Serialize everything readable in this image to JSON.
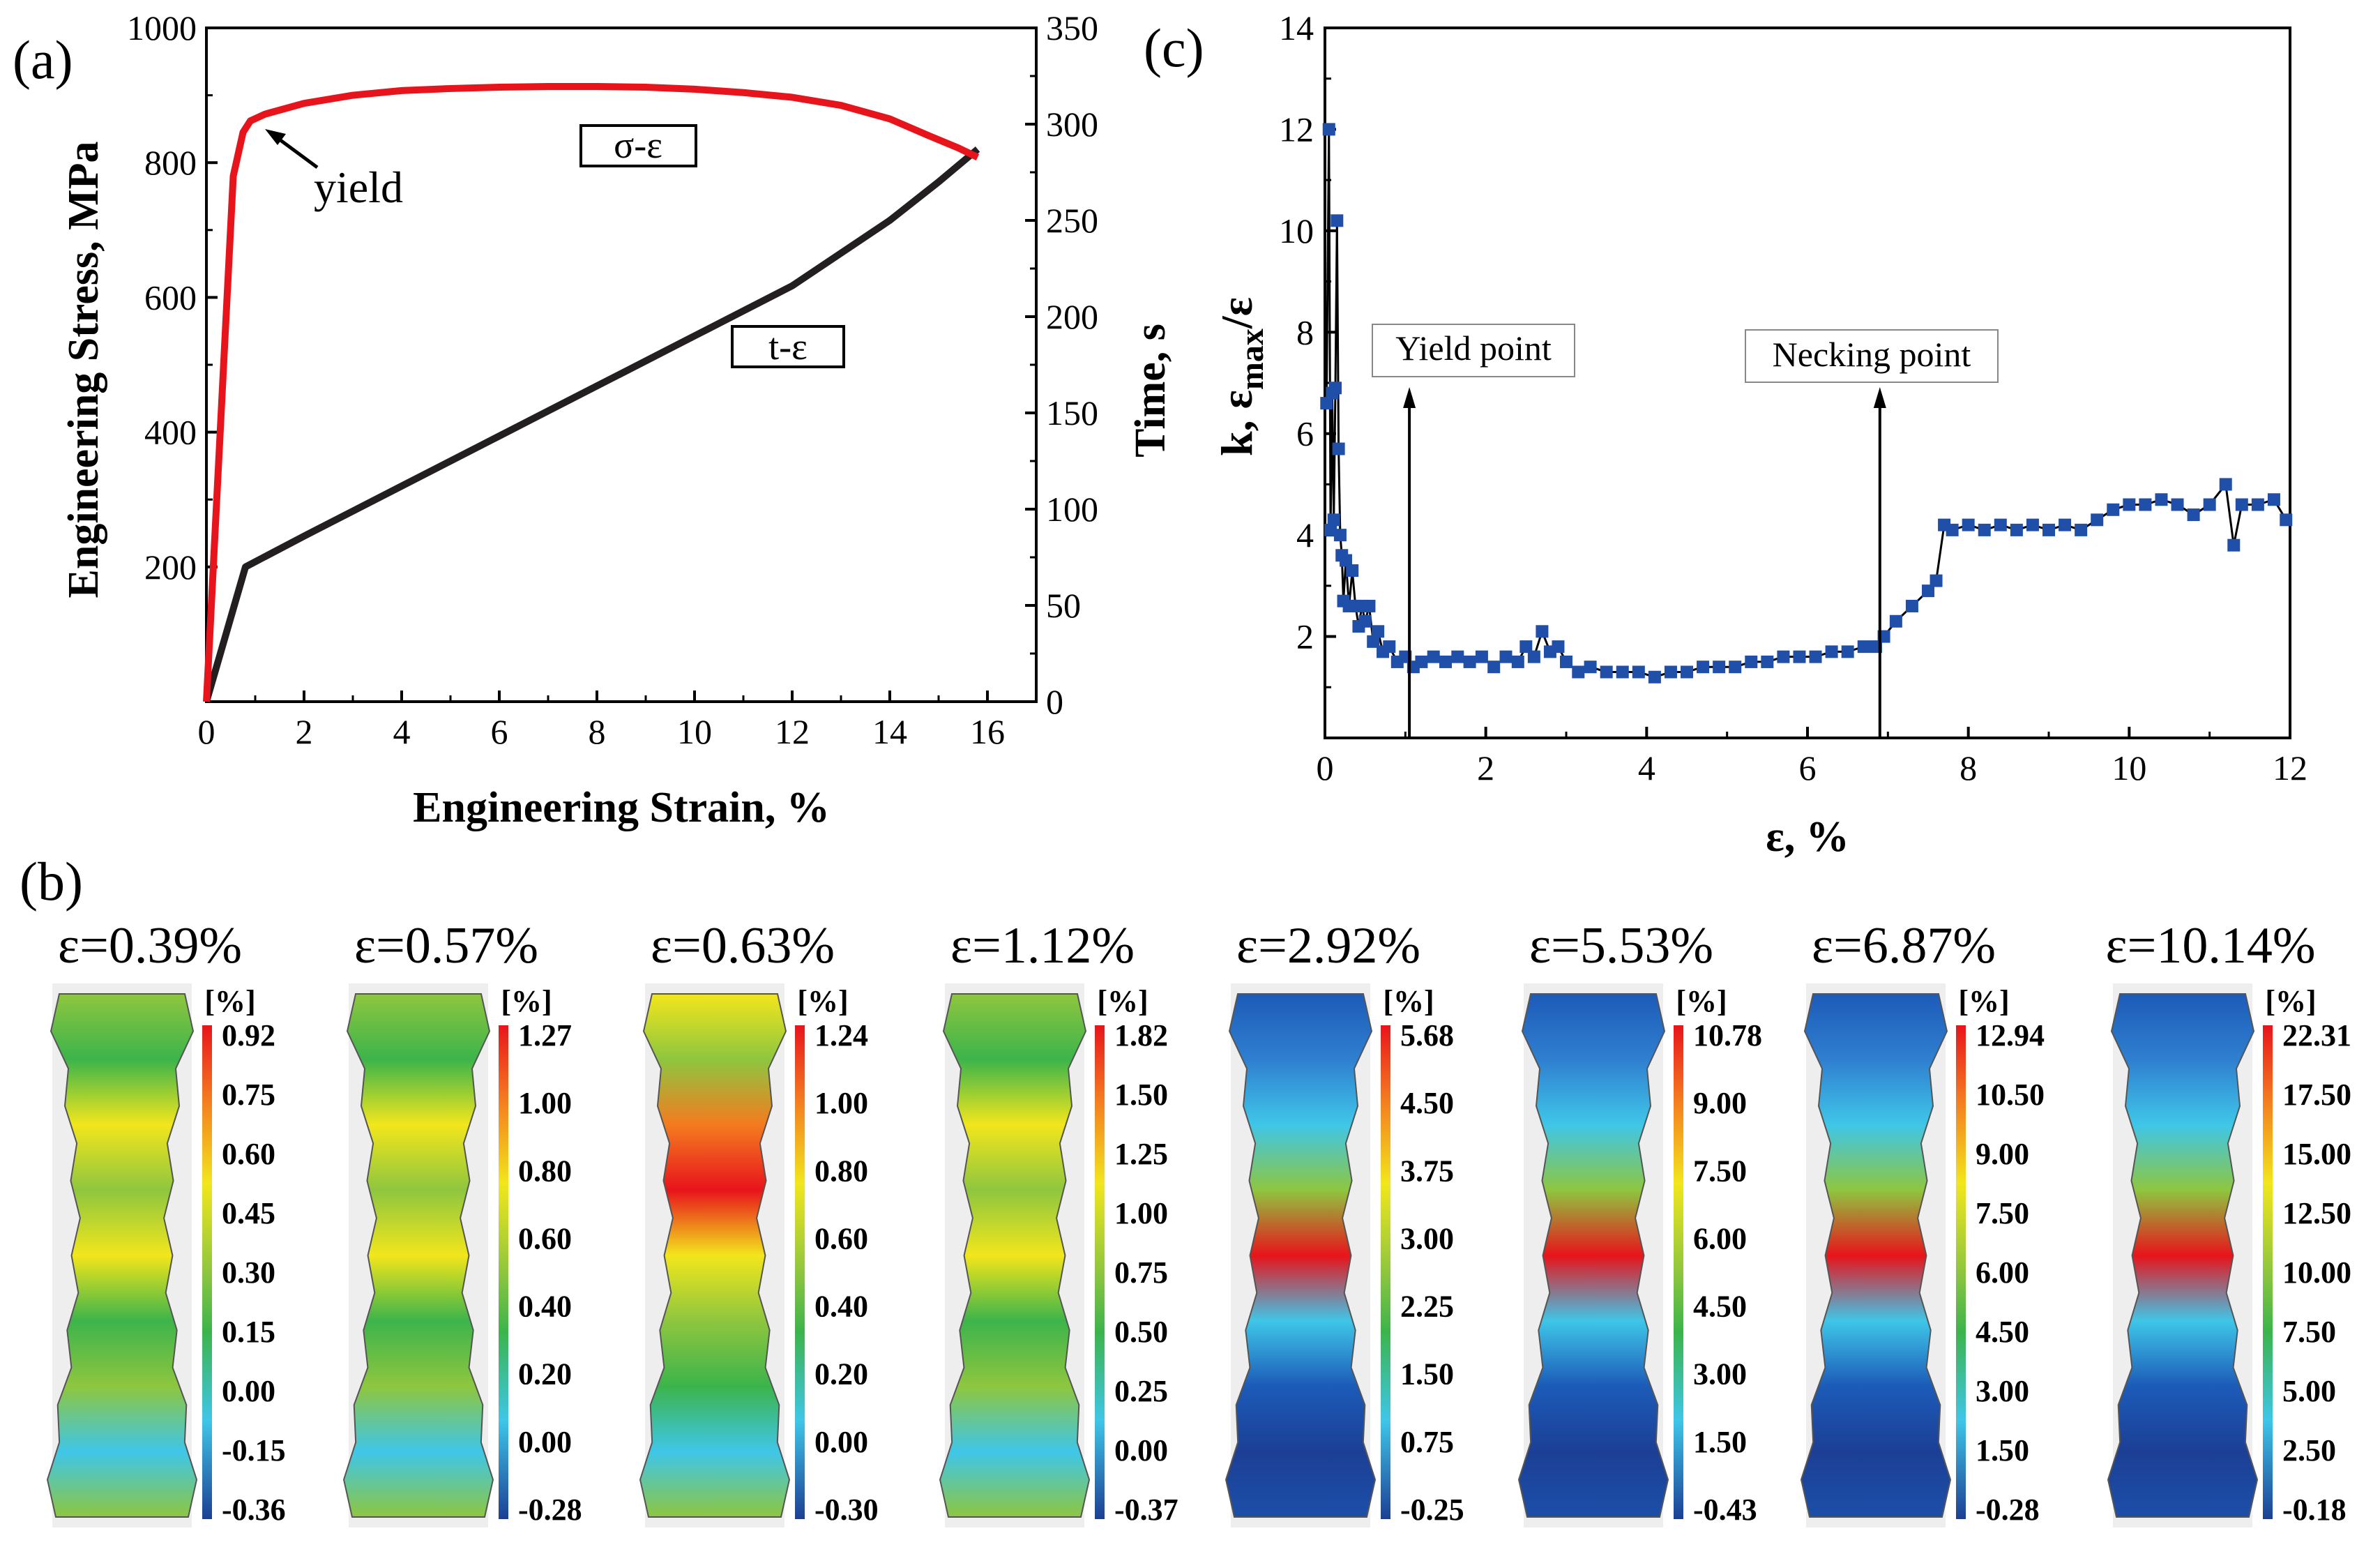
{
  "panel_labels": {
    "a": "(a)",
    "b": "(b)",
    "c": "(c)"
  },
  "colors": {
    "stress_curve": "#e8141b",
    "time_curve": "#231f20",
    "k_series": "#1f4fa8",
    "axis": "#000000"
  },
  "chart_data": [
    {
      "id": "a",
      "type": "line",
      "xlabel": "Engineering Strain, %",
      "ylabel": "Engineering Stress, MPa",
      "ylabel_right": "Time, s",
      "xlim": [
        0,
        17
      ],
      "ylim": [
        0,
        1000
      ],
      "ylim_right": [
        0,
        350
      ],
      "xticks": [
        0,
        2,
        4,
        6,
        8,
        10,
        12,
        14,
        16
      ],
      "yticks": [
        200,
        400,
        600,
        800,
        1000
      ],
      "yticks_right": [
        0,
        50,
        100,
        150,
        200,
        250,
        300,
        350
      ],
      "series": [
        {
          "name": "σ-ε",
          "axis": "left",
          "x": [
            0,
            0.55,
            0.75,
            0.9,
            1.2,
            2,
            3,
            4,
            5,
            6,
            7,
            8,
            9,
            10,
            11,
            12,
            13,
            14,
            14.8,
            15.4,
            15.8
          ],
          "y": [
            0,
            780,
            845,
            862,
            872,
            888,
            900,
            907,
            910,
            912,
            913,
            913,
            912,
            909,
            904,
            897,
            885,
            865,
            840,
            822,
            808
          ]
        },
        {
          "name": "t-ε",
          "axis": "right",
          "x": [
            0,
            0.8,
            2,
            4,
            6,
            8,
            10,
            12,
            14,
            15,
            15.8
          ],
          "y": [
            0,
            70,
            86,
            112,
            138,
            164,
            190,
            216,
            250,
            270,
            287
          ]
        }
      ],
      "annotations": [
        {
          "text": "yield",
          "x": 0.9,
          "y": 860
        },
        {
          "text": "σ-ε",
          "x": 8,
          "y": 815
        },
        {
          "text": "t-ε",
          "x": 11.7,
          "y": 530
        }
      ]
    },
    {
      "id": "c",
      "type": "scatter",
      "xlabel": "ε, %",
      "ylabel_parts": {
        "main": "k,  ε",
        "sub": "max",
        "tail": "/ε"
      },
      "xlim": [
        0,
        12
      ],
      "ylim": [
        0,
        14
      ],
      "xticks": [
        0,
        2,
        4,
        6,
        8,
        10,
        12
      ],
      "yticks": [
        2,
        4,
        6,
        8,
        10,
        12,
        14
      ],
      "series": [
        {
          "name": "k",
          "x": [
            0.02,
            0.05,
            0.07,
            0.09,
            0.11,
            0.13,
            0.15,
            0.17,
            0.19,
            0.21,
            0.23,
            0.26,
            0.3,
            0.34,
            0.38,
            0.42,
            0.46,
            0.5,
            0.55,
            0.6,
            0.66,
            0.72,
            0.8,
            0.9,
            1.0,
            1.1,
            1.2,
            1.35,
            1.5,
            1.65,
            1.8,
            1.95,
            2.1,
            2.25,
            2.4,
            2.5,
            2.6,
            2.7,
            2.8,
            2.9,
            3.0,
            3.15,
            3.3,
            3.5,
            3.7,
            3.9,
            4.1,
            4.3,
            4.5,
            4.7,
            4.9,
            5.1,
            5.3,
            5.5,
            5.7,
            5.9,
            6.1,
            6.3,
            6.5,
            6.7,
            6.85,
            6.95,
            7.1,
            7.3,
            7.5,
            7.6,
            7.7,
            7.8,
            8.0,
            8.2,
            8.4,
            8.6,
            8.8,
            9.0,
            9.2,
            9.4,
            9.6,
            9.8,
            10.0,
            10.2,
            10.4,
            10.6,
            10.8,
            11.0,
            11.2,
            11.3,
            11.4,
            11.6,
            11.8,
            11.95
          ],
          "y": [
            6.6,
            12.0,
            4.1,
            6.8,
            4.3,
            6.9,
            10.2,
            5.7,
            4.0,
            3.6,
            2.7,
            3.5,
            2.6,
            3.3,
            2.6,
            2.2,
            2.6,
            2.3,
            2.6,
            1.9,
            2.1,
            1.7,
            1.8,
            1.5,
            1.6,
            1.4,
            1.5,
            1.6,
            1.5,
            1.6,
            1.5,
            1.6,
            1.4,
            1.6,
            1.5,
            1.8,
            1.6,
            2.1,
            1.7,
            1.8,
            1.5,
            1.3,
            1.4,
            1.3,
            1.3,
            1.3,
            1.2,
            1.3,
            1.3,
            1.4,
            1.4,
            1.4,
            1.5,
            1.5,
            1.6,
            1.6,
            1.6,
            1.7,
            1.7,
            1.8,
            1.8,
            2.0,
            2.3,
            2.6,
            2.9,
            3.1,
            4.2,
            4.1,
            4.2,
            4.1,
            4.2,
            4.1,
            4.2,
            4.1,
            4.2,
            4.1,
            4.3,
            4.5,
            4.6,
            4.6,
            4.7,
            4.6,
            4.4,
            4.6,
            5.0,
            3.8,
            4.6,
            4.6,
            4.7,
            4.3
          ]
        }
      ],
      "annotations": [
        {
          "text": "Yield point",
          "x": 1.05
        },
        {
          "text": "Necking point",
          "x": 6.9
        }
      ]
    }
  ],
  "dic_maps": [
    {
      "label": "ε=0.39%",
      "unit": "[%]",
      "ticks": [
        "0.92",
        "0.75",
        "0.60",
        "0.45",
        "0.30",
        "0.15",
        "0.00",
        "-0.15",
        "-0.36"
      ],
      "scheme": "mid"
    },
    {
      "label": "ε=0.57%",
      "unit": "[%]",
      "ticks": [
        "1.27",
        "1.00",
        "0.80",
        "0.60",
        "0.40",
        "0.20",
        "0.00",
        "-0.28"
      ],
      "scheme": "mid"
    },
    {
      "label": "ε=0.63%",
      "unit": "[%]",
      "ticks": [
        "1.24",
        "1.00",
        "0.80",
        "0.60",
        "0.40",
        "0.20",
        "0.00",
        "-0.30"
      ],
      "scheme": "hot"
    },
    {
      "label": "ε=1.12%",
      "unit": "[%]",
      "ticks": [
        "1.82",
        "1.50",
        "1.25",
        "1.00",
        "0.75",
        "0.50",
        "0.25",
        "0.00",
        "-0.37"
      ],
      "scheme": "mid"
    },
    {
      "label": "ε=2.92%",
      "unit": "[%]",
      "ticks": [
        "5.68",
        "4.50",
        "3.75",
        "3.00",
        "2.25",
        "1.50",
        "0.75",
        "-0.25"
      ],
      "scheme": "neck"
    },
    {
      "label": "ε=5.53%",
      "unit": "[%]",
      "ticks": [
        "10.78",
        "9.00",
        "7.50",
        "6.00",
        "4.50",
        "3.00",
        "1.50",
        "-0.43"
      ],
      "scheme": "neck"
    },
    {
      "label": "ε=6.87%",
      "unit": "[%]",
      "ticks": [
        "12.94",
        "10.50",
        "9.00",
        "7.50",
        "6.00",
        "4.50",
        "3.00",
        "1.50",
        "-0.28"
      ],
      "scheme": "neck"
    },
    {
      "label": "ε=10.14%",
      "unit": "[%]",
      "ticks": [
        "22.31",
        "17.50",
        "15.00",
        "12.50",
        "10.00",
        "7.50",
        "5.00",
        "2.50",
        "-0.18"
      ],
      "scheme": "neck"
    }
  ]
}
